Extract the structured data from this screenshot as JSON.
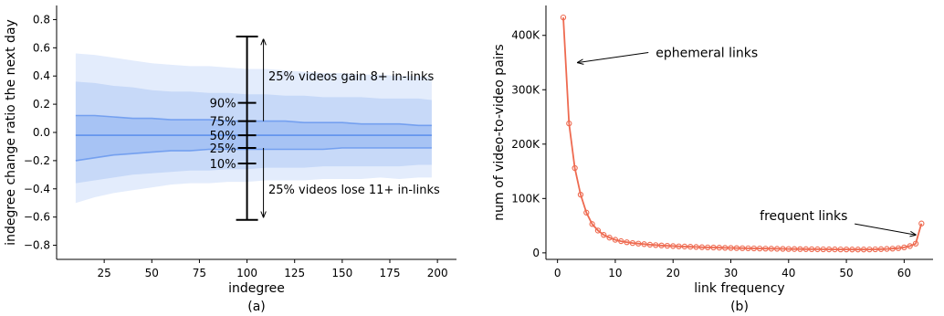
{
  "chart_data": [
    {
      "type": "area",
      "xlabel": "indegree",
      "ylabel": "indegree change ratio the next day",
      "caption": "(a)",
      "xlim": [
        0,
        210
      ],
      "ylim": [
        -0.9,
        0.9
      ],
      "xticks": [
        25,
        50,
        75,
        100,
        125,
        150,
        175,
        200
      ],
      "yticks": [
        -0.8,
        -0.6,
        -0.4,
        -0.2,
        0.0,
        0.2,
        0.4,
        0.6,
        0.8
      ],
      "ytick_labels": [
        "−0.8",
        "−0.6",
        "−0.4",
        "−0.2",
        "0.0",
        "0.2",
        "0.4",
        "0.6",
        "0.8"
      ],
      "band_color": "#6495ed",
      "x": [
        10,
        20,
        30,
        40,
        50,
        60,
        70,
        80,
        90,
        100,
        110,
        120,
        130,
        140,
        150,
        160,
        170,
        180,
        190,
        197
      ],
      "bands": [
        {
          "lower": [
            -0.5,
            -0.46,
            -0.43,
            -0.41,
            -0.39,
            -0.37,
            -0.36,
            -0.36,
            -0.35,
            -0.35,
            -0.34,
            -0.34,
            -0.34,
            -0.33,
            -0.33,
            -0.33,
            -0.32,
            -0.33,
            -0.32,
            -0.32
          ],
          "upper": [
            0.56,
            0.55,
            0.53,
            0.51,
            0.49,
            0.48,
            0.47,
            0.47,
            0.46,
            0.45,
            0.45,
            0.44,
            0.43,
            0.42,
            0.42,
            0.41,
            0.41,
            0.4,
            0.4,
            0.39
          ]
        },
        {
          "lower": [
            -0.36,
            -0.34,
            -0.32,
            -0.3,
            -0.29,
            -0.28,
            -0.27,
            -0.27,
            -0.26,
            -0.26,
            -0.25,
            -0.25,
            -0.25,
            -0.24,
            -0.24,
            -0.24,
            -0.24,
            -0.24,
            -0.23,
            -0.23
          ],
          "upper": [
            0.36,
            0.35,
            0.33,
            0.32,
            0.3,
            0.29,
            0.29,
            0.28,
            0.28,
            0.27,
            0.27,
            0.26,
            0.26,
            0.25,
            0.25,
            0.25,
            0.24,
            0.24,
            0.24,
            0.23
          ]
        },
        {
          "lower": [
            -0.2,
            -0.18,
            -0.16,
            -0.15,
            -0.14,
            -0.13,
            -0.13,
            -0.12,
            -0.12,
            -0.12,
            -0.12,
            -0.12,
            -0.12,
            -0.12,
            -0.11,
            -0.11,
            -0.11,
            -0.11,
            -0.11,
            -0.11
          ],
          "upper": [
            0.12,
            0.12,
            0.11,
            0.1,
            0.1,
            0.09,
            0.09,
            0.09,
            0.08,
            0.08,
            0.08,
            0.08,
            0.07,
            0.07,
            0.07,
            0.06,
            0.06,
            0.06,
            0.05,
            0.05
          ]
        }
      ],
      "median": [
        -0.02,
        -0.02,
        -0.02,
        -0.02,
        -0.02,
        -0.02,
        -0.02,
        -0.02,
        -0.02,
        -0.02,
        -0.02,
        -0.02,
        -0.02,
        -0.02,
        -0.02,
        -0.02,
        -0.02,
        -0.02,
        -0.02,
        -0.02
      ],
      "boxplot": {
        "x": 100,
        "whisker_low": -0.62,
        "whisker_high": 0.68,
        "ticks": [
          {
            "label": "90%",
            "value": 0.21
          },
          {
            "label": "75%",
            "value": 0.08
          },
          {
            "label": "50%",
            "value": -0.02
          },
          {
            "label": "25%",
            "value": -0.11
          },
          {
            "label": "10%",
            "value": -0.22
          }
        ]
      },
      "annotations": [
        {
          "text": "25% videos gain 8+ in-links",
          "x": 105,
          "y": 0.4,
          "arrow_from": 0.08,
          "arrow_to": 0.66
        },
        {
          "text": "25% videos lose 11+ in-links",
          "x": 105,
          "y": -0.4,
          "arrow_from": -0.11,
          "arrow_to": -0.6
        }
      ]
    },
    {
      "type": "line",
      "xlabel": "link frequency",
      "ylabel": "num of video-to-video pairs",
      "caption": "(b)",
      "xlim": [
        -2,
        65
      ],
      "ylim": [
        -12000,
        455000
      ],
      "xticks": [
        0,
        10,
        20,
        30,
        40,
        50,
        60
      ],
      "yticks": [
        0,
        100000,
        200000,
        300000,
        400000
      ],
      "ytick_labels": [
        "0",
        "100K",
        "200K",
        "300K",
        "400K"
      ],
      "color": "#ee6a50",
      "x": [
        1,
        2,
        3,
        4,
        5,
        6,
        7,
        8,
        9,
        10,
        11,
        12,
        13,
        14,
        15,
        16,
        17,
        18,
        19,
        20,
        21,
        22,
        23,
        24,
        25,
        26,
        27,
        28,
        29,
        30,
        31,
        32,
        33,
        34,
        35,
        36,
        37,
        38,
        39,
        40,
        41,
        42,
        43,
        44,
        45,
        46,
        47,
        48,
        49,
        50,
        51,
        52,
        53,
        54,
        55,
        56,
        57,
        58,
        59,
        60,
        61,
        62,
        63
      ],
      "y": [
        433000,
        238000,
        156000,
        107000,
        74000,
        53000,
        41000,
        33000,
        28000,
        24000,
        21500,
        19500,
        18000,
        17000,
        16000,
        15000,
        14300,
        13600,
        13000,
        12500,
        12000,
        11600,
        11200,
        10800,
        10400,
        10100,
        9800,
        9500,
        9200,
        9000,
        8800,
        8600,
        8400,
        8200,
        8000,
        7800,
        7600,
        7450,
        7300,
        7150,
        7000,
        6900,
        6800,
        6700,
        6600,
        6500,
        6400,
        6350,
        6300,
        6250,
        6200,
        6200,
        6200,
        6300,
        6500,
        6800,
        7200,
        7800,
        8600,
        10000,
        12500,
        17000,
        54000
      ],
      "annotations": [
        {
          "text": "ephemeral links",
          "x": 17,
          "y": 360000,
          "arrow_to_x": 3.5,
          "arrow_to_y": 350000
        },
        {
          "text": "frequent links",
          "x": 35,
          "y": 60000,
          "arrow_to_x": 62,
          "arrow_to_y": 33000
        }
      ]
    }
  ]
}
